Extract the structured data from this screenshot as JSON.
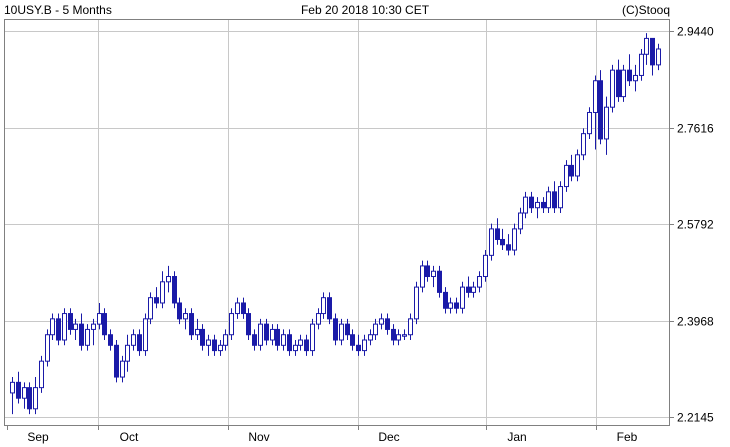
{
  "header": {
    "left": "10USY.B - 5 Months",
    "center": "Feb 20 2018 10:30 CET",
    "right": "(C)Stooq"
  },
  "colors": {
    "candle": "#1a1aa8",
    "grid": "#c8c8c8",
    "frame": "#808080"
  },
  "chart_data": {
    "type": "candlestick",
    "y_ticks": [
      "2.9440",
      "2.7616",
      "2.5792",
      "2.3968",
      "2.2145"
    ],
    "x_ticks": [
      "Sep",
      "Oct",
      "Nov",
      "Dec",
      "Jan",
      "Feb"
    ],
    "ylim": [
      2.2145,
      2.944
    ],
    "grid": true,
    "candles": [
      [
        2.26,
        2.29,
        2.22,
        2.28
      ],
      [
        2.28,
        2.3,
        2.24,
        2.25
      ],
      [
        2.25,
        2.28,
        2.23,
        2.27
      ],
      [
        2.27,
        2.28,
        2.22,
        2.23
      ],
      [
        2.23,
        2.29,
        2.22,
        2.27
      ],
      [
        2.27,
        2.33,
        2.26,
        2.32
      ],
      [
        2.32,
        2.38,
        2.31,
        2.37
      ],
      [
        2.37,
        2.41,
        2.36,
        2.4
      ],
      [
        2.4,
        2.41,
        2.35,
        2.36
      ],
      [
        2.36,
        2.42,
        2.35,
        2.41
      ],
      [
        2.41,
        2.42,
        2.37,
        2.38
      ],
      [
        2.38,
        2.4,
        2.36,
        2.39
      ],
      [
        2.39,
        2.41,
        2.34,
        2.35
      ],
      [
        2.35,
        2.39,
        2.34,
        2.38
      ],
      [
        2.38,
        2.4,
        2.35,
        2.39
      ],
      [
        2.39,
        2.43,
        2.38,
        2.41
      ],
      [
        2.41,
        2.42,
        2.36,
        2.37
      ],
      [
        2.37,
        2.38,
        2.34,
        2.35
      ],
      [
        2.35,
        2.36,
        2.28,
        2.29
      ],
      [
        2.29,
        2.33,
        2.28,
        2.32
      ],
      [
        2.32,
        2.37,
        2.3,
        2.35
      ],
      [
        2.35,
        2.38,
        2.34,
        2.37
      ],
      [
        2.37,
        2.38,
        2.33,
        2.34
      ],
      [
        2.34,
        2.41,
        2.33,
        2.4
      ],
      [
        2.4,
        2.45,
        2.39,
        2.44
      ],
      [
        2.44,
        2.46,
        2.42,
        2.43
      ],
      [
        2.43,
        2.49,
        2.42,
        2.47
      ],
      [
        2.47,
        2.5,
        2.45,
        2.48
      ],
      [
        2.48,
        2.49,
        2.42,
        2.43
      ],
      [
        2.43,
        2.44,
        2.39,
        2.4
      ],
      [
        2.4,
        2.42,
        2.38,
        2.41
      ],
      [
        2.41,
        2.42,
        2.36,
        2.37
      ],
      [
        2.37,
        2.4,
        2.36,
        2.38
      ],
      [
        2.38,
        2.39,
        2.34,
        2.35
      ],
      [
        2.35,
        2.37,
        2.33,
        2.36
      ],
      [
        2.36,
        2.37,
        2.33,
        2.34
      ],
      [
        2.34,
        2.36,
        2.33,
        2.35
      ],
      [
        2.35,
        2.38,
        2.34,
        2.37
      ],
      [
        2.37,
        2.42,
        2.36,
        2.41
      ],
      [
        2.41,
        2.44,
        2.4,
        2.43
      ],
      [
        2.43,
        2.44,
        2.4,
        2.41
      ],
      [
        2.41,
        2.42,
        2.36,
        2.37
      ],
      [
        2.37,
        2.38,
        2.34,
        2.35
      ],
      [
        2.35,
        2.4,
        2.34,
        2.39
      ],
      [
        2.39,
        2.4,
        2.35,
        2.36
      ],
      [
        2.36,
        2.39,
        2.35,
        2.38
      ],
      [
        2.38,
        2.39,
        2.34,
        2.35
      ],
      [
        2.35,
        2.38,
        2.34,
        2.37
      ],
      [
        2.37,
        2.38,
        2.33,
        2.34
      ],
      [
        2.34,
        2.36,
        2.33,
        2.35
      ],
      [
        2.35,
        2.37,
        2.34,
        2.36
      ],
      [
        2.36,
        2.37,
        2.33,
        2.34
      ],
      [
        2.34,
        2.4,
        2.33,
        2.39
      ],
      [
        2.39,
        2.42,
        2.38,
        2.41
      ],
      [
        2.41,
        2.45,
        2.4,
        2.44
      ],
      [
        2.44,
        2.45,
        2.39,
        2.4
      ],
      [
        2.4,
        2.41,
        2.35,
        2.36
      ],
      [
        2.36,
        2.4,
        2.35,
        2.39
      ],
      [
        2.39,
        2.4,
        2.36,
        2.37
      ],
      [
        2.37,
        2.38,
        2.34,
        2.35
      ],
      [
        2.35,
        2.37,
        2.33,
        2.34
      ],
      [
        2.34,
        2.37,
        2.33,
        2.36
      ],
      [
        2.36,
        2.38,
        2.35,
        2.37
      ],
      [
        2.37,
        2.4,
        2.36,
        2.39
      ],
      [
        2.39,
        2.41,
        2.38,
        2.4
      ],
      [
        2.4,
        2.41,
        2.37,
        2.38
      ],
      [
        2.38,
        2.39,
        2.35,
        2.36
      ],
      [
        2.36,
        2.38,
        2.35,
        2.37
      ],
      [
        2.37,
        2.38,
        2.36,
        2.37
      ],
      [
        2.37,
        2.41,
        2.36,
        2.4
      ],
      [
        2.4,
        2.47,
        2.39,
        2.46
      ],
      [
        2.46,
        2.51,
        2.45,
        2.5
      ],
      [
        2.5,
        2.51,
        2.47,
        2.48
      ],
      [
        2.48,
        2.5,
        2.46,
        2.49
      ],
      [
        2.49,
        2.5,
        2.44,
        2.45
      ],
      [
        2.45,
        2.46,
        2.41,
        2.42
      ],
      [
        2.42,
        2.44,
        2.41,
        2.43
      ],
      [
        2.43,
        2.44,
        2.41,
        2.42
      ],
      [
        2.42,
        2.47,
        2.41,
        2.46
      ],
      [
        2.46,
        2.48,
        2.44,
        2.45
      ],
      [
        2.45,
        2.47,
        2.44,
        2.46
      ],
      [
        2.46,
        2.49,
        2.45,
        2.48
      ],
      [
        2.48,
        2.53,
        2.47,
        2.52
      ],
      [
        2.52,
        2.58,
        2.51,
        2.57
      ],
      [
        2.57,
        2.59,
        2.54,
        2.55
      ],
      [
        2.55,
        2.57,
        2.53,
        2.54
      ],
      [
        2.54,
        2.56,
        2.52,
        2.53
      ],
      [
        2.53,
        2.58,
        2.52,
        2.57
      ],
      [
        2.57,
        2.61,
        2.56,
        2.6
      ],
      [
        2.6,
        2.64,
        2.59,
        2.63
      ],
      [
        2.63,
        2.64,
        2.6,
        2.61
      ],
      [
        2.61,
        2.63,
        2.59,
        2.62
      ],
      [
        2.62,
        2.63,
        2.6,
        2.61
      ],
      [
        2.61,
        2.65,
        2.6,
        2.64
      ],
      [
        2.64,
        2.66,
        2.6,
        2.61
      ],
      [
        2.61,
        2.66,
        2.6,
        2.65
      ],
      [
        2.65,
        2.7,
        2.64,
        2.69
      ],
      [
        2.69,
        2.71,
        2.66,
        2.67
      ],
      [
        2.67,
        2.72,
        2.66,
        2.71
      ],
      [
        2.71,
        2.76,
        2.7,
        2.75
      ],
      [
        2.75,
        2.8,
        2.74,
        2.79
      ],
      [
        2.79,
        2.86,
        2.72,
        2.85
      ],
      [
        2.85,
        2.87,
        2.73,
        2.74
      ],
      [
        2.74,
        2.82,
        2.71,
        2.8
      ],
      [
        2.8,
        2.88,
        2.79,
        2.87
      ],
      [
        2.87,
        2.89,
        2.81,
        2.82
      ],
      [
        2.82,
        2.88,
        2.81,
        2.87
      ],
      [
        2.87,
        2.9,
        2.84,
        2.85
      ],
      [
        2.85,
        2.88,
        2.83,
        2.86
      ],
      [
        2.86,
        2.91,
        2.85,
        2.9
      ],
      [
        2.9,
        2.94,
        2.88,
        2.93
      ],
      [
        2.93,
        2.93,
        2.86,
        2.88
      ],
      [
        2.88,
        2.92,
        2.87,
        2.91
      ]
    ]
  }
}
